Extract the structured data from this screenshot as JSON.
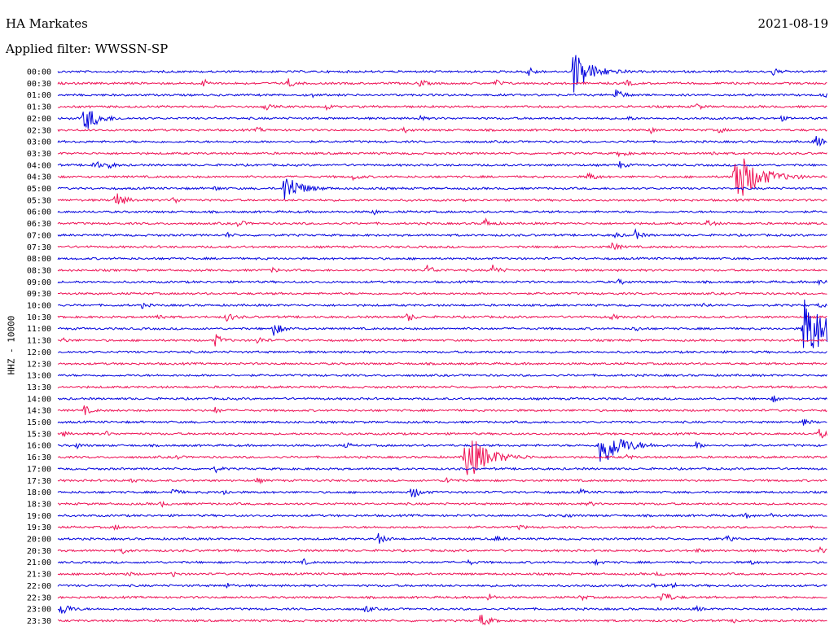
{
  "header": {
    "station": "HA Markates",
    "date": "2021-08-19",
    "filter": "Applied filter: WWSSN-SP"
  },
  "chart_data": {
    "type": "helicorder",
    "title": "HA Markates",
    "channel_label": "HHZ - 10000",
    "date": "2021-08-19",
    "colors": [
      "#0000dd",
      "#ee1155"
    ],
    "rows": [
      {
        "time": "00:00",
        "events": [
          [
            61,
            2.2
          ],
          [
            67,
            9
          ],
          [
            93,
            1.5
          ]
        ]
      },
      {
        "time": "00:30",
        "events": [
          [
            19,
            1.5
          ],
          [
            30,
            1.7
          ],
          [
            47,
            1.7
          ],
          [
            57,
            1.5
          ],
          [
            74,
            1.2
          ]
        ]
      },
      {
        "time": "01:00",
        "events": [
          [
            33,
            0.8
          ],
          [
            72.5,
            2.5
          ],
          [
            99.5,
            1.2
          ]
        ]
      },
      {
        "time": "01:30",
        "events": [
          [
            27,
            1.3
          ],
          [
            35,
            1.2
          ],
          [
            83,
            1.3
          ]
        ]
      },
      {
        "time": "02:00",
        "events": [
          [
            3.5,
            6
          ],
          [
            47,
            1.0
          ],
          [
            74,
            1.0
          ],
          [
            94,
            1.0
          ]
        ]
      },
      {
        "time": "02:30",
        "events": [
          [
            26,
            1.0
          ],
          [
            45,
            1.0
          ],
          [
            77,
            1.2
          ],
          [
            86,
            1.1
          ]
        ]
      },
      {
        "time": "03:00",
        "events": [
          [
            98.5,
            2.5
          ]
        ]
      },
      {
        "time": "03:30",
        "events": [
          [
            73,
            1.6
          ],
          [
            85,
            1.0
          ]
        ]
      },
      {
        "time": "04:00",
        "events": [
          [
            4.7,
            2.0
          ],
          [
            6.5,
            1.6
          ],
          [
            73,
            1.5
          ]
        ]
      },
      {
        "time": "04:30",
        "events": [
          [
            38.5,
            1.4
          ],
          [
            69,
            2.0
          ],
          [
            88,
            12
          ]
        ]
      },
      {
        "time": "05:00",
        "events": [
          [
            29.5,
            7
          ],
          [
            20.5,
            1.0
          ]
        ]
      },
      {
        "time": "05:30",
        "events": [
          [
            7.5,
            3.5
          ],
          [
            15,
            1.5
          ]
        ]
      },
      {
        "time": "06:00",
        "events": [
          [
            41,
            1.0
          ]
        ]
      },
      {
        "time": "06:30",
        "events": [
          [
            23.5,
            1.5
          ],
          [
            55.5,
            2.0
          ],
          [
            84.5,
            1.5
          ]
        ]
      },
      {
        "time": "07:00",
        "events": [
          [
            22,
            1.0
          ],
          [
            72.5,
            1.2
          ],
          [
            75,
            2.0
          ]
        ]
      },
      {
        "time": "07:30",
        "events": [
          [
            72,
            2.0
          ]
        ]
      },
      {
        "time": "08:00",
        "events": []
      },
      {
        "time": "08:30",
        "events": [
          [
            48,
            2.2
          ],
          [
            56.5,
            2.2
          ],
          [
            28,
            1.0
          ]
        ]
      },
      {
        "time": "09:00",
        "events": [
          [
            73,
            1.0
          ],
          [
            99,
            1.2
          ]
        ]
      },
      {
        "time": "09:30",
        "events": []
      },
      {
        "time": "10:00",
        "events": [
          [
            11,
            1.0
          ],
          [
            84,
            1.0
          ],
          [
            99,
            1.0
          ]
        ]
      },
      {
        "time": "10:30",
        "events": [
          [
            13,
            1.5
          ],
          [
            22,
            2.0
          ],
          [
            45.5,
            1.8
          ],
          [
            72,
            1.2
          ]
        ]
      },
      {
        "time": "11:00",
        "events": [
          [
            28,
            3.0
          ],
          [
            75,
            1.2
          ],
          [
            97,
            14
          ]
        ]
      },
      {
        "time": "11:30",
        "events": [
          [
            0.5,
            1.2
          ],
          [
            20.5,
            2.4
          ],
          [
            26,
            1.6
          ]
        ]
      },
      {
        "time": "12:00",
        "events": []
      },
      {
        "time": "12:30",
        "events": []
      },
      {
        "time": "13:00",
        "events": []
      },
      {
        "time": "13:30",
        "events": []
      },
      {
        "time": "14:00",
        "events": [
          [
            93,
            1.2
          ]
        ]
      },
      {
        "time": "14:30",
        "events": [
          [
            3.5,
            1.8
          ],
          [
            20.5,
            1.2
          ]
        ]
      },
      {
        "time": "15:00",
        "events": [
          [
            97,
            1.3
          ]
        ]
      },
      {
        "time": "15:30",
        "events": [
          [
            0.7,
            1.0
          ],
          [
            6.2,
            1.0
          ],
          [
            99,
            2.0
          ]
        ]
      },
      {
        "time": "16:00",
        "events": [
          [
            70.5,
            10
          ],
          [
            83,
            1.5
          ],
          [
            2.5,
            1.0
          ],
          [
            37.5,
            1.0
          ]
        ]
      },
      {
        "time": "16:30",
        "events": [
          [
            53,
            11
          ],
          [
            15.5,
            0.8
          ],
          [
            74,
            1.0
          ]
        ]
      },
      {
        "time": "17:00",
        "events": [
          [
            20.5,
            1.2
          ]
        ]
      },
      {
        "time": "17:30",
        "events": [
          [
            50.5,
            1.5
          ],
          [
            26,
            1.0
          ],
          [
            9.5,
            1.0
          ]
        ]
      },
      {
        "time": "18:00",
        "events": [
          [
            46,
            2.8
          ],
          [
            15,
            1.5
          ],
          [
            21.5,
            1.2
          ],
          [
            68,
            1.0
          ]
        ]
      },
      {
        "time": "18:30",
        "events": [
          [
            13.5,
            1.0
          ],
          [
            69,
            1.0
          ]
        ]
      },
      {
        "time": "19:00",
        "events": [
          [
            66,
            1.0
          ],
          [
            89.5,
            1.0
          ],
          [
            92.5,
            1.0
          ]
        ]
      },
      {
        "time": "19:30",
        "events": [
          [
            7.5,
            1.0
          ],
          [
            60,
            1.0
          ]
        ]
      },
      {
        "time": "20:00",
        "events": [
          [
            41.5,
            2.5
          ],
          [
            57,
            1.2
          ],
          [
            87,
            1.2
          ]
        ]
      },
      {
        "time": "20:30",
        "events": [
          [
            8.5,
            1.0
          ],
          [
            83,
            1.0
          ],
          [
            99,
            1.2
          ]
        ]
      },
      {
        "time": "21:00",
        "events": [
          [
            32,
            1.0
          ],
          [
            53.5,
            1.0
          ],
          [
            70,
            1.0
          ],
          [
            90,
            1.0
          ]
        ]
      },
      {
        "time": "21:30",
        "events": [
          [
            9,
            1.0
          ],
          [
            15,
            1.0
          ],
          [
            78,
            1.0
          ]
        ]
      },
      {
        "time": "22:00",
        "events": [
          [
            22,
            1.0
          ],
          [
            77,
            1.2
          ],
          [
            80,
            1.2
          ]
        ]
      },
      {
        "time": "22:30",
        "events": [
          [
            56,
            1.5
          ],
          [
            68,
            1.2
          ],
          [
            78.5,
            3.0
          ]
        ]
      },
      {
        "time": "23:00",
        "events": [
          [
            0.5,
            3.0
          ],
          [
            40,
            1.5
          ],
          [
            83,
            1.0
          ]
        ]
      },
      {
        "time": "23:30",
        "events": [
          [
            55,
            3.0
          ],
          [
            88,
            1.0
          ]
        ]
      }
    ]
  }
}
